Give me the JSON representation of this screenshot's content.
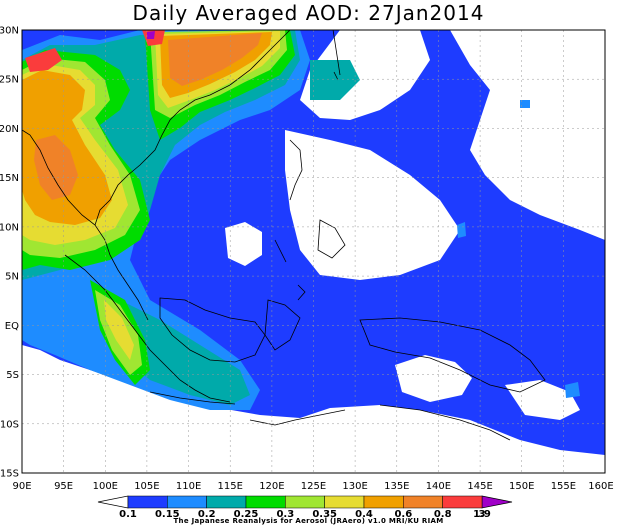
{
  "title": "Daily Averaged AOD: 27Jan2014",
  "credit": "The Japanese Reanalysis for Aerosol (JRAero) v1.0 MRI/KU RIAM",
  "lon_ticks": [
    "90E",
    "95E",
    "100E",
    "105E",
    "110E",
    "115E",
    "120E",
    "125E",
    "130E",
    "135E",
    "140E",
    "145E",
    "150E",
    "155E",
    "160E"
  ],
  "lat_ticks": [
    "30N",
    "25N",
    "20N",
    "15N",
    "10N",
    "5N",
    "EQ",
    "5S",
    "10S",
    "15S"
  ],
  "colorbar": {
    "labels": [
      "0.1",
      "0.15",
      "0.2",
      "0.25",
      "0.3",
      "0.35",
      "0.4",
      "0.6",
      "0.8",
      "1.9",
      "3"
    ],
    "colors": [
      "#1e3cff",
      "#1e8cff",
      "#00aaaa",
      "#00dc00",
      "#a0e632",
      "#e6dc32",
      "#f0a000",
      "#f08228",
      "#fa3c3c",
      "#a000c8"
    ]
  },
  "map": {
    "extent": {
      "lon": [
        90,
        160
      ],
      "lat": [
        -15,
        30
      ]
    },
    "grid": true,
    "colors": {
      "blue": "#1e3cff",
      "lightblue": "#1e8cff",
      "teal": "#00aaaa",
      "green": "#00dc00",
      "yellowgreen": "#a0e632",
      "yellow": "#e6dc32",
      "orange": "#f0a000",
      "darkorange": "#f08228",
      "red": "#fa3c3c",
      "purple": "#a000c8"
    }
  }
}
